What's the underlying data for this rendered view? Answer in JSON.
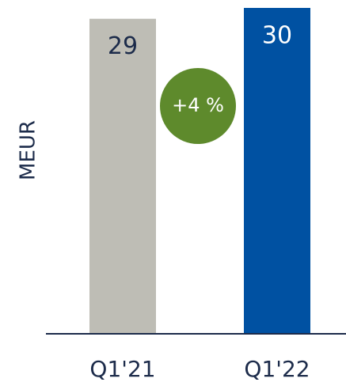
{
  "chart_data": {
    "type": "bar",
    "categories": [
      "Q1'21",
      "Q1'22"
    ],
    "values": [
      29,
      30
    ],
    "colors": [
      "#bebdb5",
      "#0051a2"
    ],
    "value_label_colors": [
      "#1c2b4a",
      "#ffffff"
    ],
    "ylabel": "MEUR",
    "ylim": [
      0,
      30
    ],
    "annotation": "+4 %",
    "annotation_color": "#5e8a2c"
  }
}
